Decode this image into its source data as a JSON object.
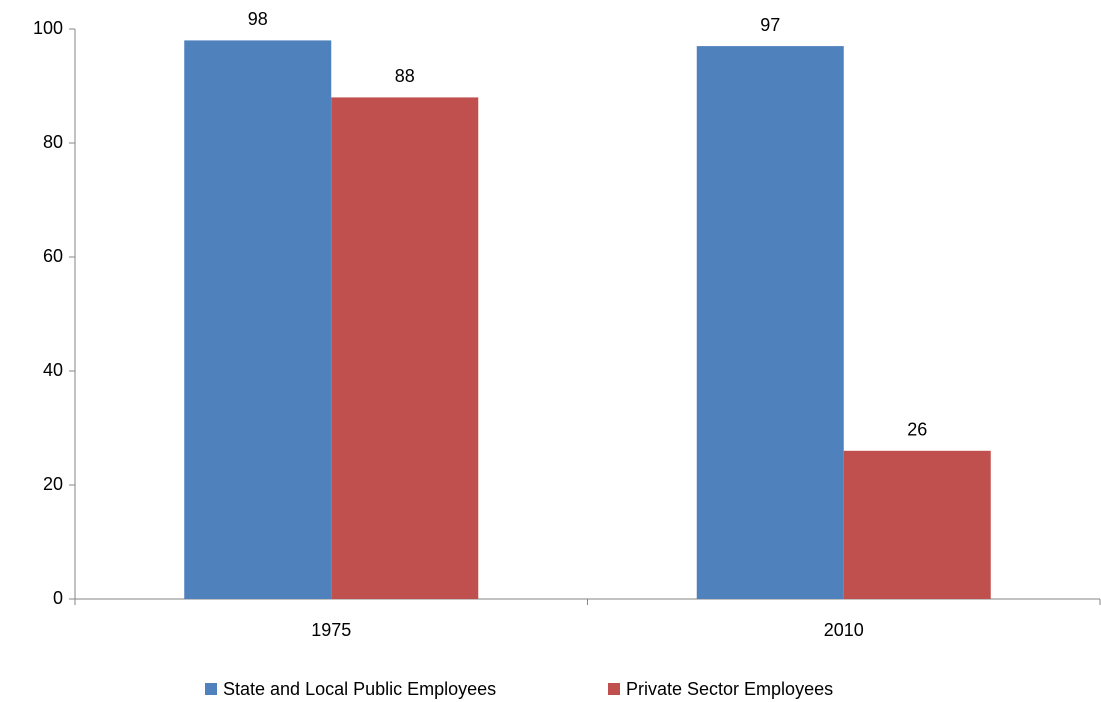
{
  "chart_data": {
    "type": "bar",
    "categories": [
      "1975",
      "2010"
    ],
    "series": [
      {
        "name": "State and Local Public Employees",
        "color": "#4f81bd",
        "values": [
          98,
          97
        ]
      },
      {
        "name": "Private Sector Employees",
        "color": "#c0504d",
        "values": [
          88,
          26
        ]
      }
    ],
    "ylim": [
      0,
      100
    ],
    "yticks": [
      0,
      20,
      40,
      60,
      80,
      100
    ],
    "grid": false,
    "legend": "bottom"
  }
}
